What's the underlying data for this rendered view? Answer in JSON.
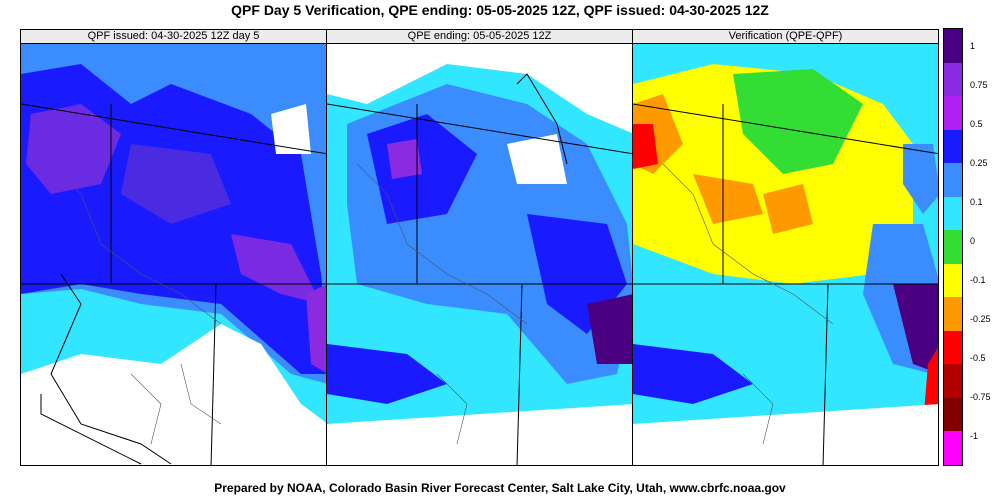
{
  "title": "QPF Day 5 Verification, QPE ending: 05-05-2025 12Z, QPF issued: 04-30-2025 12Z",
  "footer": "Prepared by NOAA, Colorado Basin River Forecast Center, Salt Lake City, Utah, www.cbrfc.noaa.gov",
  "panels": [
    {
      "id": "qpf",
      "header": "QPF issued: 04-30-2025 12Z day 5"
    },
    {
      "id": "qpe",
      "header": "QPE ending: 05-05-2025 12Z"
    },
    {
      "id": "verif",
      "header": "Verification (QPE-QPF)"
    }
  ],
  "legend": {
    "labels": [
      "1",
      "0.75",
      "0.5",
      "0.25",
      "0.1",
      "0",
      "-0.1",
      "-0.25",
      "-0.5",
      "-0.75",
      "-1"
    ],
    "colors": [
      "#4b0082",
      "#8a2be2",
      "#b020f0",
      "#1a1aff",
      "#3a8cff",
      "#33e6ff",
      "#33dd33",
      "#ffff00",
      "#ff9900",
      "#ff0000",
      "#b30000",
      "#800000",
      "#ff00ff"
    ]
  }
}
